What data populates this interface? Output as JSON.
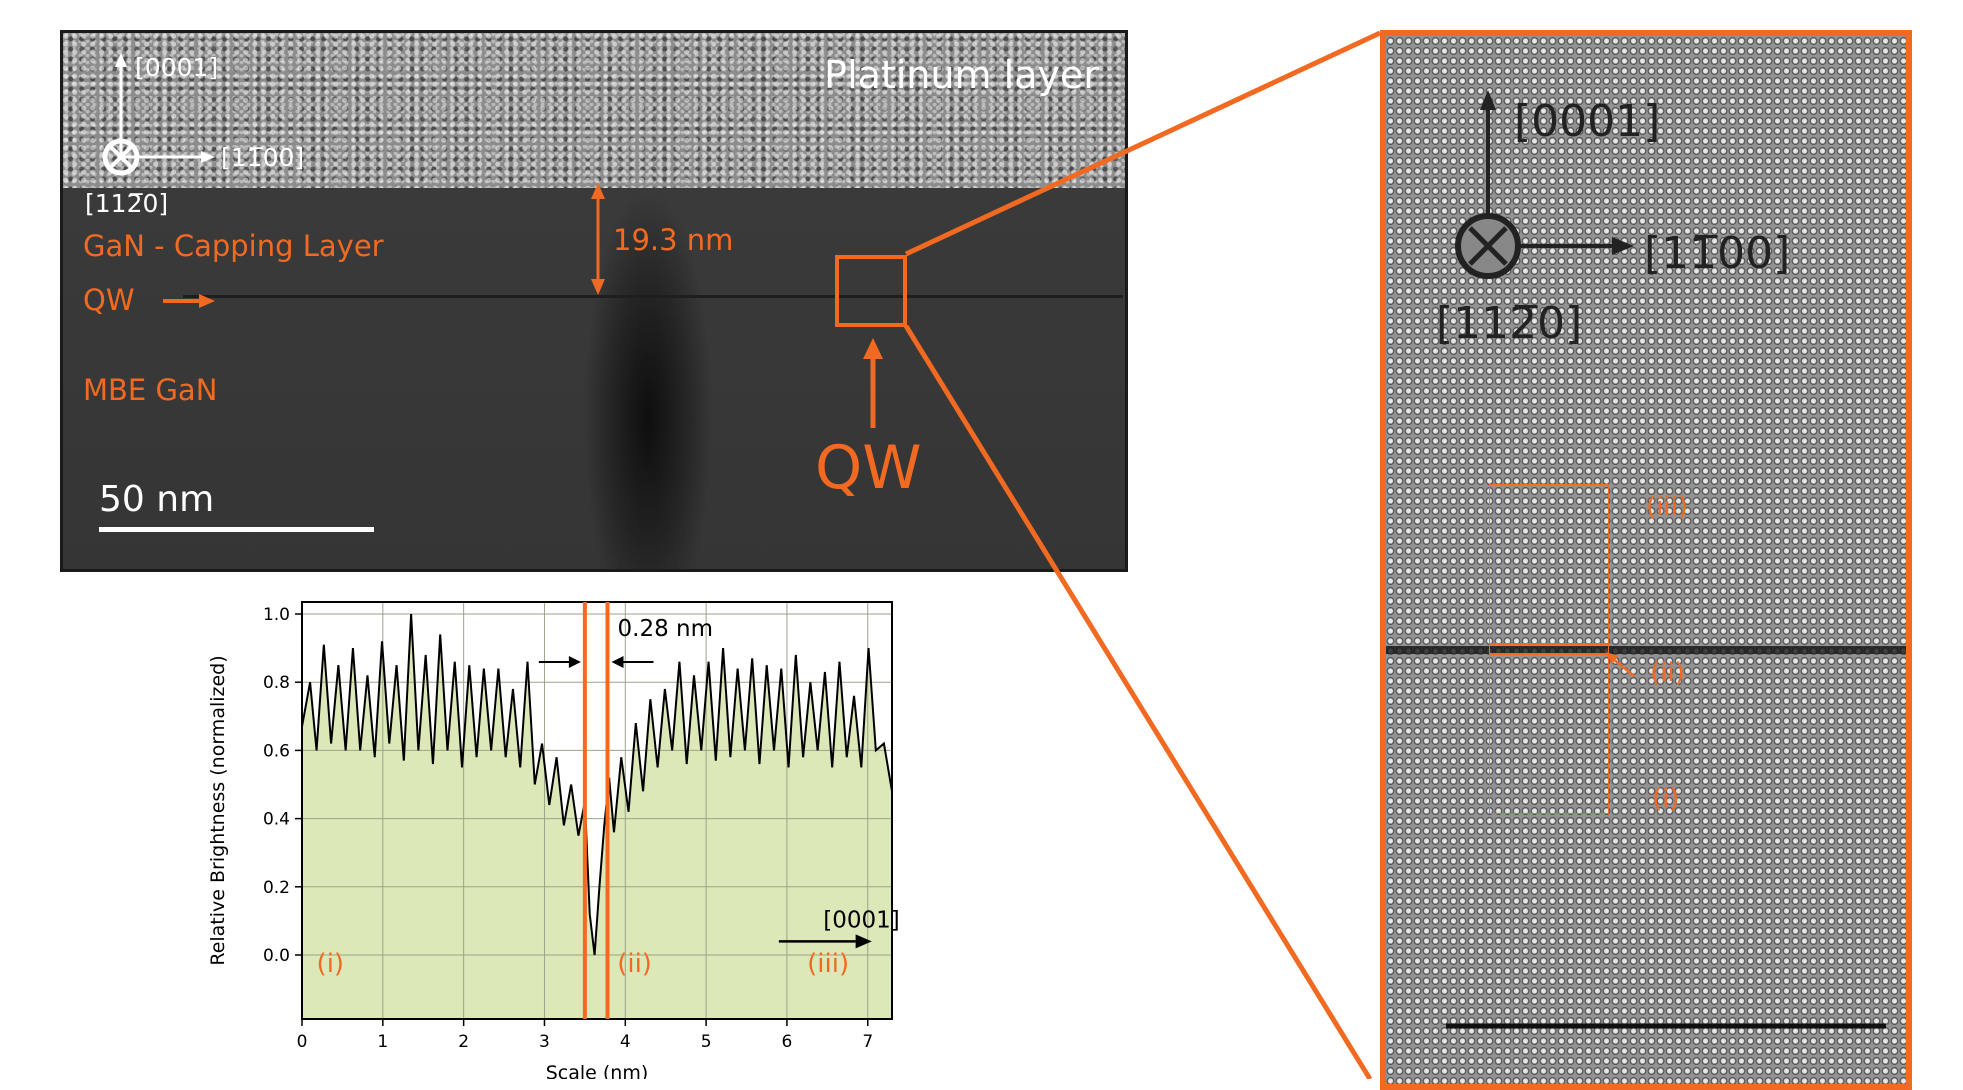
{
  "panel_tem": {
    "platinum_label": "Platinum layer",
    "axis_up": "[0001]",
    "axis_right": "[1̅1̅00]",
    "axis_right_text": "[11̅00]",
    "axis_out": "[112̅0]",
    "capping_label": "GaN - Capping Layer",
    "qw_label": "QW",
    "mbe_label": "MBE GaN",
    "thickness_label": "19.3 nm",
    "scalebar_label": "50 nm",
    "qw_big_label": "QW",
    "accent_color": "#f26a21"
  },
  "panel_hr": {
    "axis_up": "[0001]",
    "axis_right": "[11̅00]",
    "axis_out": "[112̅0]",
    "region_iii": "(iii)",
    "region_ii": "(ii)",
    "region_i": "(i)"
  },
  "chart_data": {
    "type": "line",
    "xlabel": "Scale (nm)",
    "ylabel": "Relative Brightness (normalized)",
    "xlim": [
      0,
      7.3
    ],
    "ylim": [
      0,
      1.0
    ],
    "x_ticks": [
      "0",
      "1",
      "2",
      "3",
      "4",
      "5",
      "6",
      "7"
    ],
    "y_ticks": [
      "0.0",
      "0.2",
      "0.4",
      "0.6",
      "0.8",
      "1.0"
    ],
    "grid": true,
    "fill_color": "#dce8b8",
    "line_color": "#000000",
    "marker_color": "#f26a21",
    "markers_x": [
      3.5,
      3.78
    ],
    "annotation_spacing": "0.28 nm",
    "direction_label": "[0001]",
    "region_labels": [
      "(i)",
      "(ii)",
      "(iii)"
    ],
    "series": [
      {
        "x": [
          0.0,
          0.1,
          0.18,
          0.27,
          0.36,
          0.45,
          0.54,
          0.63,
          0.72,
          0.81,
          0.9,
          0.99,
          1.08,
          1.17,
          1.26,
          1.35,
          1.44,
          1.53,
          1.62,
          1.71,
          1.8,
          1.89,
          1.98,
          2.07,
          2.16,
          2.25,
          2.34,
          2.43,
          2.52,
          2.61,
          2.7,
          2.79,
          2.88,
          2.97,
          3.06,
          3.15,
          3.24,
          3.33,
          3.42,
          3.5,
          3.56,
          3.62,
          3.68,
          3.74,
          3.8,
          3.86,
          3.95,
          4.04,
          4.13,
          4.22,
          4.31,
          4.4,
          4.49,
          4.58,
          4.67,
          4.76,
          4.85,
          4.94,
          5.03,
          5.12,
          5.21,
          5.3,
          5.39,
          5.48,
          5.57,
          5.66,
          5.75,
          5.84,
          5.93,
          6.02,
          6.11,
          6.2,
          6.29,
          6.38,
          6.47,
          6.56,
          6.65,
          6.74,
          6.83,
          6.92,
          7.01,
          7.1,
          7.2,
          7.3
        ],
        "values": [
          0.67,
          0.8,
          0.6,
          0.91,
          0.62,
          0.85,
          0.6,
          0.9,
          0.6,
          0.82,
          0.58,
          0.92,
          0.62,
          0.85,
          0.57,
          1.0,
          0.6,
          0.88,
          0.56,
          0.94,
          0.6,
          0.86,
          0.55,
          0.85,
          0.58,
          0.84,
          0.6,
          0.84,
          0.58,
          0.78,
          0.55,
          0.86,
          0.5,
          0.62,
          0.44,
          0.58,
          0.38,
          0.5,
          0.35,
          0.45,
          0.12,
          0.0,
          0.2,
          0.38,
          0.52,
          0.36,
          0.58,
          0.42,
          0.68,
          0.48,
          0.75,
          0.55,
          0.78,
          0.6,
          0.86,
          0.56,
          0.82,
          0.6,
          0.86,
          0.57,
          0.9,
          0.58,
          0.84,
          0.6,
          0.87,
          0.56,
          0.85,
          0.6,
          0.84,
          0.55,
          0.88,
          0.58,
          0.8,
          0.6,
          0.83,
          0.55,
          0.86,
          0.58,
          0.76,
          0.55,
          0.9,
          0.6,
          0.62,
          0.48
        ]
      }
    ]
  }
}
